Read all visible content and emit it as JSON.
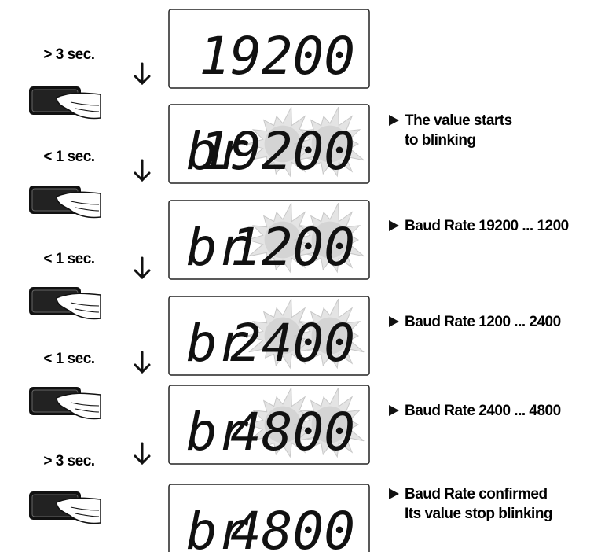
{
  "presses": [
    "> 3 sec.",
    "< 1 sec.",
    "< 1 sec.",
    "< 1 sec.",
    "> 3 sec."
  ],
  "displays": [
    {
      "value": "19200"
    },
    {
      "prefix": "br",
      "value": "19200",
      "blinking": true,
      "note": [
        "The value starts",
        "to blinking"
      ]
    },
    {
      "prefix": "br",
      "value": "1200",
      "blinking": true,
      "note": [
        "Baud Rate 19200 ... 1200"
      ]
    },
    {
      "prefix": "br",
      "value": "2400",
      "blinking": true,
      "note": [
        "Baud Rate 1200 ... 2400"
      ]
    },
    {
      "prefix": "br",
      "value": "4800",
      "blinking": true,
      "note": [
        "Baud Rate 2400 ... 4800"
      ]
    },
    {
      "prefix": "br",
      "value": "4800",
      "note": [
        "Baud Rate confirmed",
        "Its value stop blinking"
      ]
    }
  ]
}
